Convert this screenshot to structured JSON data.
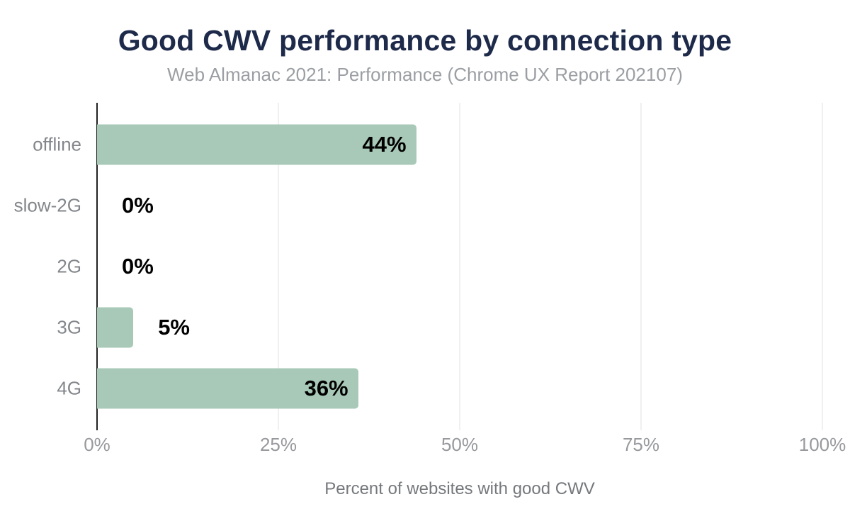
{
  "chart_data": {
    "type": "bar",
    "orientation": "horizontal",
    "title": "Good CWV performance by connection type",
    "subtitle": "Web Almanac 2021: Performance (Chrome UX Report 202107)",
    "categories": [
      "offline",
      "slow-2G",
      "2G",
      "3G",
      "4G"
    ],
    "values": [
      44,
      0,
      0,
      5,
      36
    ],
    "value_labels": [
      "44%",
      "0%",
      "0%",
      "5%",
      "36%"
    ],
    "xlabel": "Percent of websites with good CWV",
    "ylabel": "",
    "xlim": [
      0,
      100
    ],
    "x_ticks": [
      0,
      25,
      50,
      75,
      100
    ],
    "x_tick_labels": [
      "0%",
      "25%",
      "50%",
      "75%",
      "100%"
    ],
    "grid": "vertical-light",
    "legend": "none",
    "colors": {
      "background": "#ffffff",
      "bar": "#a8c9b8",
      "title": "#1e2a4a",
      "subtitle": "#9b9fa3",
      "category_label": "#83878b",
      "tick_label": "#97999d",
      "value_label": "#000000",
      "axis_line": "#212121",
      "gridline": "#f0f0f0",
      "xlabel": "#75787c"
    }
  }
}
